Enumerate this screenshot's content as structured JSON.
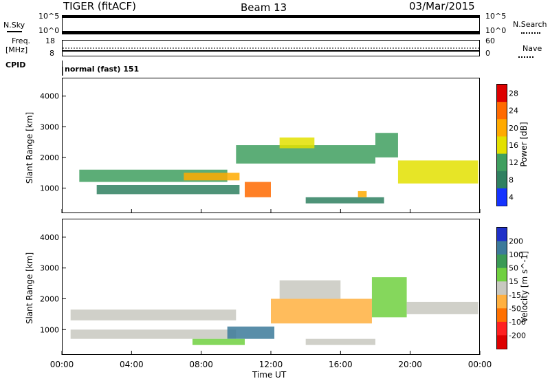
{
  "header": {
    "radar": "TIGER (fitACF)",
    "beam": "Beam 13",
    "date": "03/Mar/2015"
  },
  "top_panels": {
    "nsky_label": "N.Sky",
    "nsky_ticks": [
      "10^5",
      "10^0"
    ],
    "nsearch_label": "N.Search",
    "nsearch_ticks": [
      "10^5",
      "10^0"
    ],
    "freq_label_1": "Freq.",
    "freq_label_2": "[MHz]",
    "freq_ticks": [
      "18",
      "8"
    ],
    "nave_label": "Nave",
    "nave_ticks": [
      "60",
      "0"
    ],
    "cpid_label": "CPID",
    "cpid_text": "normal (fast) 151"
  },
  "x_axis": {
    "label": "Time UT",
    "ticks": [
      "00:00",
      "04:00",
      "08:00",
      "12:00",
      "16:00",
      "20:00",
      "00:00"
    ]
  },
  "chart_data": [
    {
      "type": "heatmap",
      "ylabel": "Slant Range [km]",
      "ylim": [
        180,
        4600
      ],
      "yticks": [
        "4000",
        "3000",
        "2000",
        "1000"
      ],
      "colorbar_label": "Power [dB]",
      "colorbar_ticks": [
        "28",
        "24",
        "20",
        "16",
        "12",
        "8",
        "4"
      ],
      "colorbar_colors": [
        "#dd0000",
        "#ff6a00",
        "#ffaa00",
        "#e3e000",
        "#3f9f5f",
        "#2f8060",
        "#1533ff"
      ],
      "bands": [
        {
          "t0": 1.0,
          "t1": 9.5,
          "r0": 1200,
          "r1": 1600,
          "value": 12
        },
        {
          "t0": 2.0,
          "t1": 10.2,
          "r0": 800,
          "r1": 1100,
          "value": 10
        },
        {
          "t0": 7.0,
          "t1": 10.2,
          "r0": 1250,
          "r1": 1500,
          "value": 20
        },
        {
          "t0": 10.5,
          "t1": 12.0,
          "r0": 700,
          "r1": 1200,
          "value": 24
        },
        {
          "t0": 10.0,
          "t1": 18.0,
          "r0": 1800,
          "r1": 2400,
          "value": 12
        },
        {
          "t0": 12.5,
          "t1": 14.5,
          "r0": 2300,
          "r1": 2650,
          "value": 16
        },
        {
          "t0": 14.0,
          "t1": 18.5,
          "r0": 500,
          "r1": 700,
          "value": 8
        },
        {
          "t0": 17.0,
          "t1": 17.5,
          "r0": 700,
          "r1": 900,
          "value": 22
        },
        {
          "t0": 18.0,
          "t1": 19.3,
          "r0": 2000,
          "r1": 2800,
          "value": 12
        },
        {
          "t0": 19.3,
          "t1": 23.9,
          "r0": 1150,
          "r1": 1900,
          "value": 16
        }
      ]
    },
    {
      "type": "heatmap",
      "ylabel": "Slant Range [km]",
      "ylim": [
        180,
        4600
      ],
      "yticks": [
        "4000",
        "3000",
        "2000",
        "1000"
      ],
      "colorbar_label": "Velocity [m s^-1]",
      "colorbar_ticks": [
        "200",
        "100",
        "50",
        "15",
        "-15",
        "-50",
        "-100",
        "-200"
      ],
      "colorbar_colors": [
        "#1f30c8",
        "#3c7a9a",
        "#3a9a55",
        "#70d040",
        "#c8c8c0",
        "#ffb040",
        "#ff7000",
        "#ff2020",
        "#dd0000"
      ],
      "bands": [
        {
          "t0": 0.5,
          "t1": 10.0,
          "r0": 1300,
          "r1": 1650,
          "value": -10
        },
        {
          "t0": 0.5,
          "t1": 10.0,
          "r0": 700,
          "r1": 1000,
          "value": 0
        },
        {
          "t0": 9.5,
          "t1": 12.2,
          "r0": 700,
          "r1": 1100,
          "value": 180
        },
        {
          "t0": 7.5,
          "t1": 10.5,
          "r0": 500,
          "r1": 700,
          "value": 40
        },
        {
          "t0": 12.0,
          "t1": 17.8,
          "r0": 1200,
          "r1": 2000,
          "value": -80
        },
        {
          "t0": 12.5,
          "t1": 16.0,
          "r0": 2000,
          "r1": 2600,
          "value": 0
        },
        {
          "t0": 17.8,
          "t1": 19.8,
          "r0": 1400,
          "r1": 2700,
          "value": 30
        },
        {
          "t0": 19.8,
          "t1": 23.9,
          "r0": 1500,
          "r1": 1900,
          "value": 0
        },
        {
          "t0": 14.0,
          "t1": 18.0,
          "r0": 500,
          "r1": 700,
          "value": 0
        }
      ]
    }
  ]
}
